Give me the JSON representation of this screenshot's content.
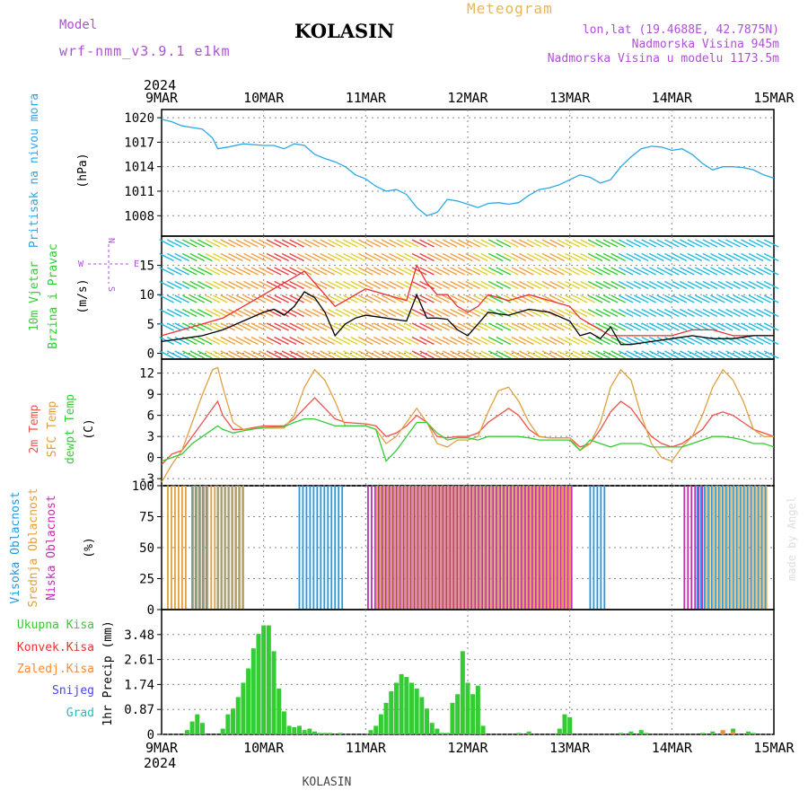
{
  "header": {
    "model_label": "Model",
    "model_name": "wrf-nmm_v3.9.1 e1km",
    "location": "KOLASIN",
    "product": "Meteogram",
    "lonlat": "lon,lat (19.4688E, 42.7875N)",
    "altitude": "Nadmorska Visina 945m",
    "model_altitude": "Nadmorska Visina u modelu 1173.5m"
  },
  "footer": {
    "location": "KOLASIN",
    "credit": "made by Angel"
  },
  "time_axis": {
    "year_top": "2024",
    "year_bottom": "2024",
    "ticks": [
      "9MAR",
      "10MAR",
      "11MAR",
      "12MAR",
      "13MAR",
      "14MAR",
      "15MAR"
    ]
  },
  "colors": {
    "pressure": "#2aa8e6",
    "temp2m": "#f0504a",
    "sfc_temp": "#e0a040",
    "dewpt": "#33cc33",
    "high_cloud": "#2299e0",
    "mid_cloud": "#e0a040",
    "low_cloud": "#c030b0",
    "total_precip": "#33cc33",
    "conv_precip": "#ee3030",
    "frozen_precip": "#ff8833",
    "snow": "#4444ee",
    "hail": "#22bbbb",
    "wind_label": "#33cc33",
    "compass": "#b04fd8"
  },
  "chart_data": [
    {
      "type": "line",
      "title": "",
      "ylabel_side": "Pritisak na nivou mora",
      "ylabel": "(hPa)",
      "ylim": [
        1005.5,
        1021
      ],
      "yticks": [
        "1008",
        "1011",
        "1014",
        "1017",
        "1020"
      ],
      "x": [
        0,
        0.1,
        0.2,
        0.3,
        0.4,
        0.5,
        0.55,
        0.65,
        0.8,
        1.0,
        1.1,
        1.2,
        1.3,
        1.4,
        1.5,
        1.6,
        1.7,
        1.8,
        1.9,
        2.0,
        2.1,
        2.2,
        2.3,
        2.4,
        2.5,
        2.6,
        2.7,
        2.8,
        2.9,
        3.0,
        3.1,
        3.2,
        3.3,
        3.4,
        3.5,
        3.6,
        3.7,
        3.8,
        3.9,
        4.0,
        4.1,
        4.2,
        4.3,
        4.4,
        4.5,
        4.6,
        4.7,
        4.8,
        4.9,
        5.0,
        5.1,
        5.2,
        5.3,
        5.4,
        5.5,
        5.6,
        5.7,
        5.8,
        5.9,
        6.0
      ],
      "series": [
        {
          "name": "",
          "values": [
            1019.8,
            1019.5,
            1019.0,
            1018.8,
            1018.6,
            1017.5,
            1016.2,
            1016.4,
            1016.8,
            1016.6,
            1016.6,
            1016.2,
            1016.8,
            1016.6,
            1015.5,
            1015.0,
            1014.6,
            1014.0,
            1013.0,
            1012.5,
            1011.6,
            1011.0,
            1011.2,
            1010.6,
            1009.0,
            1008.0,
            1008.4,
            1010.0,
            1009.8,
            1009.4,
            1009.0,
            1009.5,
            1009.6,
            1009.4,
            1009.6,
            1010.5,
            1011.2,
            1011.4,
            1011.8,
            1012.4,
            1013.0,
            1012.7,
            1012.0,
            1012.4,
            1014.0,
            1015.2,
            1016.2,
            1016.5,
            1016.4,
            1016.0,
            1016.2,
            1015.5,
            1014.4,
            1013.6,
            1014.0,
            1014.0,
            1013.9,
            1013.6,
            1013.0,
            1012.6
          ]
        }
      ]
    },
    {
      "type": "line",
      "title": "",
      "ylabel_side": [
        "10m Vjetar",
        "Brzina i Pravac"
      ],
      "ylabel": "(m/s)",
      "ylim": [
        -1,
        20
      ],
      "yticks": [
        "0",
        "5",
        "10",
        "15"
      ],
      "compass": {
        "north": "N",
        "west": "W",
        "east": "E",
        "south": "S"
      },
      "x": [
        0,
        0.2,
        0.4,
        0.6,
        0.8,
        1.0,
        1.1,
        1.2,
        1.3,
        1.4,
        1.5,
        1.6,
        1.7,
        1.8,
        1.9,
        2.0,
        2.2,
        2.4,
        2.5,
        2.6,
        2.7,
        2.8,
        2.9,
        3.0,
        3.1,
        3.2,
        3.4,
        3.6,
        3.8,
        4.0,
        4.1,
        4.2,
        4.3,
        4.4,
        4.5,
        4.6,
        4.8,
        5.0,
        5.2,
        5.4,
        5.6,
        5.8,
        6.0
      ],
      "series": [
        {
          "name": "",
          "values": [
            2,
            2.5,
            3,
            4,
            5.5,
            7,
            7.5,
            6.5,
            8,
            10.5,
            9.5,
            7,
            3,
            5,
            6,
            6.5,
            6,
            5.5,
            10,
            6,
            6,
            5.8,
            4,
            3,
            5,
            7,
            6.5,
            7.5,
            7,
            5.5,
            3,
            3.5,
            2.5,
            4.5,
            1.5,
            1.5,
            2,
            2.5,
            3,
            2.5,
            2.5,
            3,
            3
          ]
        },
        {
          "name": "",
          "values": [
            3,
            4,
            5,
            6,
            8,
            10,
            11,
            12,
            13,
            14,
            12,
            10,
            8,
            9,
            10,
            11,
            10,
            9,
            15,
            12,
            10,
            10,
            8,
            7,
            8,
            10,
            9,
            10,
            9,
            8,
            6,
            5,
            4,
            3,
            3,
            3,
            3,
            3,
            4,
            4,
            3,
            3,
            3
          ]
        }
      ]
    },
    {
      "type": "line",
      "title": "",
      "ylabel_side": [
        "2m Temp",
        "SFC Temp",
        "dewpt Temp"
      ],
      "ylabel": "(C)",
      "ylim": [
        -4,
        14
      ],
      "yticks": [
        "-3",
        "0",
        "3",
        "6",
        "9",
        "12"
      ],
      "x": [
        0,
        0.1,
        0.2,
        0.3,
        0.4,
        0.5,
        0.55,
        0.6,
        0.7,
        0.8,
        1.0,
        1.2,
        1.3,
        1.4,
        1.5,
        1.6,
        1.7,
        1.8,
        2.0,
        2.1,
        2.2,
        2.3,
        2.4,
        2.5,
        2.6,
        2.7,
        2.8,
        2.9,
        3.0,
        3.1,
        3.2,
        3.3,
        3.4,
        3.5,
        3.6,
        3.7,
        3.8,
        3.9,
        4.0,
        4.1,
        4.2,
        4.3,
        4.4,
        4.5,
        4.6,
        4.7,
        4.8,
        4.9,
        5.0,
        5.1,
        5.2,
        5.3,
        5.4,
        5.5,
        5.6,
        5.7,
        5.8,
        5.9,
        6.0
      ],
      "series": [
        {
          "name": "2m Temp",
          "values": [
            -1,
            0.5,
            1,
            3,
            5,
            7,
            8,
            6,
            4,
            4,
            4.5,
            4.5,
            5.5,
            7,
            8.5,
            7,
            5.5,
            5,
            4.8,
            4.5,
            3,
            3.5,
            4.5,
            6,
            5,
            3,
            2.8,
            3,
            3,
            3.5,
            5,
            6,
            7,
            6,
            4,
            3,
            2.8,
            2.8,
            2.8,
            1.5,
            2,
            4,
            6.5,
            8,
            7,
            5,
            3,
            2,
            1.5,
            2,
            3,
            4,
            6,
            6.5,
            6,
            5,
            4,
            3.5,
            3
          ]
        },
        {
          "name": "SFC Temp",
          "values": [
            -3.5,
            -1,
            1,
            5,
            9,
            12.5,
            12.8,
            10,
            5,
            4,
            4.2,
            4.2,
            6,
            10,
            12.5,
            11,
            8,
            4.5,
            4.5,
            4,
            2,
            3,
            5,
            7,
            5,
            2,
            1.5,
            2.5,
            2.5,
            3,
            6.5,
            9.5,
            10,
            8,
            5,
            3,
            2.8,
            2.8,
            2.8,
            1,
            2,
            5,
            10,
            12.5,
            11,
            6,
            2,
            0,
            -0.5,
            1.5,
            3,
            6,
            10,
            12.5,
            11,
            8,
            4,
            3,
            3
          ]
        },
        {
          "name": "dewpt Temp",
          "values": [
            -0.5,
            0,
            0.5,
            2,
            3,
            4,
            4.5,
            4,
            3.5,
            3.8,
            4.3,
            4.4,
            5,
            5.5,
            5.5,
            5,
            4.5,
            4.5,
            4.5,
            4,
            -0.5,
            1,
            3,
            5,
            5,
            3.5,
            2.5,
            2.8,
            2.8,
            2.5,
            3,
            3,
            3,
            3,
            2.8,
            2.5,
            2.5,
            2.5,
            2.5,
            1,
            2.5,
            2,
            1.5,
            2,
            2,
            2,
            1.5,
            1.5,
            1.5,
            1.5,
            2,
            2.5,
            3,
            3,
            2.8,
            2.5,
            2,
            2,
            1.5
          ]
        }
      ]
    },
    {
      "type": "bar",
      "title": "",
      "ylabel_side": [
        "Visoka Oblacnost",
        "Srednja Oblacnost",
        "Niska Oblacnost"
      ],
      "ylabel": "(%)",
      "ylim": [
        0,
        100
      ],
      "yticks": [
        "0",
        "25",
        "50",
        "75",
        "100"
      ],
      "segments": [
        {
          "name": "Visoka Oblacnost",
          "ranges": [
            [
              0.3,
              0.45
            ],
            [
              0.55,
              0.8
            ],
            [
              1.35,
              1.8
            ],
            [
              4.2,
              4.35
            ],
            [
              5.25,
              5.95
            ]
          ]
        },
        {
          "name": "Srednja Oblacnost",
          "ranges": [
            [
              0.05,
              0.25
            ],
            [
              0.3,
              0.8
            ],
            [
              2.1,
              4.0
            ],
            [
              5.25,
              5.95
            ]
          ]
        },
        {
          "name": "Niska Oblacnost",
          "ranges": [
            [
              2.0,
              4.0
            ],
            [
              5.1,
              5.3
            ]
          ]
        }
      ]
    },
    {
      "type": "bar",
      "title": "",
      "ylabel_side": [
        "Ukupna Kisa",
        "Konvek.Kisa",
        "Zaledj.Kisa",
        "Snijeg",
        "Grad"
      ],
      "ylabel": "1hr Precip (mm)",
      "ylim": [
        0,
        4.35
      ],
      "yticks": [
        "0",
        "0.87",
        "1.74",
        "2.61",
        "3.48"
      ],
      "x": [
        0.25,
        0.3,
        0.35,
        0.4,
        0.6,
        0.65,
        0.7,
        0.75,
        0.8,
        0.85,
        0.9,
        0.95,
        1.0,
        1.05,
        1.1,
        1.15,
        1.2,
        1.25,
        1.3,
        1.35,
        1.4,
        1.45,
        1.5,
        1.55,
        1.6,
        1.65,
        1.75,
        2.05,
        2.1,
        2.15,
        2.2,
        2.25,
        2.3,
        2.35,
        2.4,
        2.45,
        2.5,
        2.55,
        2.6,
        2.65,
        2.7,
        2.75,
        2.8,
        2.85,
        2.9,
        2.95,
        3.0,
        3.05,
        3.1,
        3.15,
        3.5,
        3.6,
        3.9,
        3.95,
        4.0,
        4.5,
        4.6,
        4.7,
        4.75,
        5.3,
        5.4,
        5.5,
        5.6,
        5.75,
        5.8
      ],
      "series": [
        {
          "name": "Ukupna Kisa",
          "values": [
            0.15,
            0.45,
            0.7,
            0.4,
            0.2,
            0.7,
            0.9,
            1.3,
            1.8,
            2.3,
            3.0,
            3.5,
            3.8,
            3.8,
            2.9,
            1.6,
            0.8,
            0.3,
            0.25,
            0.3,
            0.15,
            0.2,
            0.1,
            0.05,
            0.05,
            0.05,
            0.05,
            0.15,
            0.3,
            0.7,
            1.1,
            1.5,
            1.8,
            2.1,
            2.0,
            1.8,
            1.6,
            1.3,
            0.9,
            0.4,
            0.2,
            0.05,
            0.05,
            1.1,
            1.4,
            2.9,
            1.8,
            1.4,
            1.7,
            0.3,
            0.05,
            0.1,
            0.2,
            0.7,
            0.6,
            0.05,
            0.1,
            0.15,
            0.05,
            0.05,
            0.1,
            0.1,
            0.2,
            0.1,
            0.05
          ]
        },
        {
          "name": "Konvek.Kisa",
          "values": [
            0,
            0,
            0,
            0,
            0,
            0,
            0,
            0,
            0,
            0,
            0,
            0,
            0,
            0,
            0,
            0,
            0,
            0,
            0,
            0,
            0,
            0,
            0,
            0,
            0,
            0,
            0,
            0,
            0,
            0,
            0,
            0,
            0,
            0,
            0,
            0,
            0,
            0,
            0,
            0,
            0,
            0,
            0,
            0,
            0,
            0,
            0,
            0,
            0,
            0,
            0,
            0,
            0,
            0,
            0,
            0,
            0,
            0,
            0,
            0,
            0,
            0.15,
            0.1,
            0,
            0
          ]
        }
      ]
    }
  ]
}
